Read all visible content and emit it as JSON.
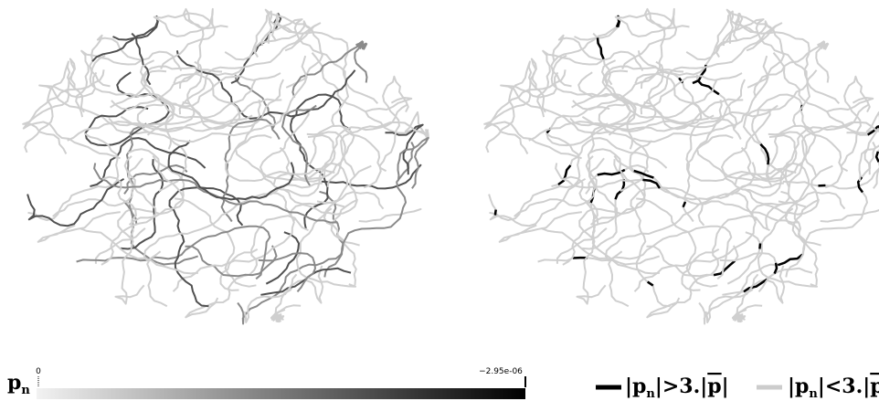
{
  "colorbar": {
    "symbol": {
      "base": "p",
      "sub": "n"
    },
    "min_label": "0",
    "max_label": "−2.95e-06"
  },
  "legend": {
    "items": [
      {
        "parts": [
          "|p",
          "n",
          "|>3.|",
          "p",
          "|"
        ]
      },
      {
        "parts": [
          "|p",
          "n",
          "|<3.|",
          "p",
          "|"
        ]
      }
    ]
  }
}
